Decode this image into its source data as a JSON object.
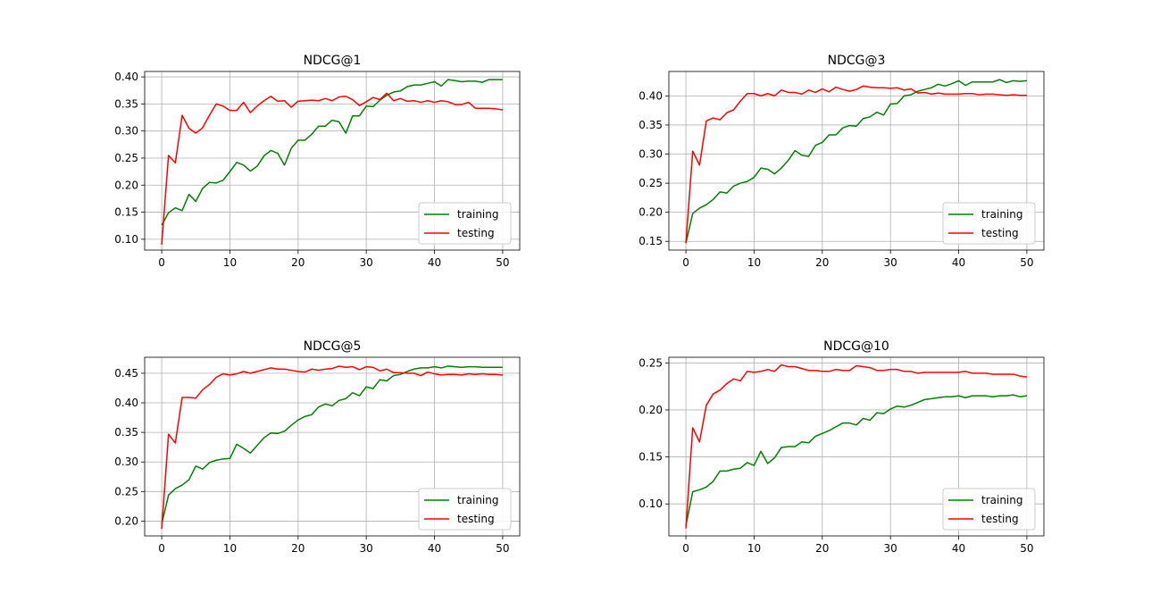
{
  "chart_data": [
    {
      "type": "line",
      "title": "NDCG@1",
      "xlim": [
        -2.5,
        52.5
      ],
      "ylim": [
        0.08,
        0.41
      ],
      "xticks": [
        0,
        10,
        20,
        30,
        40,
        50
      ],
      "yticks": [
        0.1,
        0.15,
        0.2,
        0.25,
        0.3,
        0.35,
        0.4
      ],
      "ytick_labels": [
        "0.10",
        "0.15",
        "0.20",
        "0.25",
        "0.30",
        "0.35",
        "0.40"
      ],
      "grid": true,
      "legend": "lower-right",
      "series": [
        {
          "name": "training",
          "color": "#008000",
          "values": [
            0.126,
            0.149,
            0.158,
            0.153,
            0.183,
            0.17,
            0.194,
            0.205,
            0.204,
            0.209,
            0.225,
            0.242,
            0.237,
            0.226,
            0.235,
            0.254,
            0.264,
            0.259,
            0.237,
            0.268,
            0.283,
            0.283,
            0.294,
            0.309,
            0.309,
            0.32,
            0.317,
            0.296,
            0.328,
            0.328,
            0.346,
            0.345,
            0.357,
            0.366,
            0.372,
            0.374,
            0.382,
            0.385,
            0.385,
            0.388,
            0.391,
            0.383,
            0.395,
            0.393,
            0.391,
            0.392,
            0.392,
            0.39,
            0.395,
            0.395,
            0.395
          ]
        },
        {
          "name": "testing",
          "color": "#ff0000",
          "values": [
            0.09,
            0.255,
            0.241,
            0.329,
            0.305,
            0.296,
            0.306,
            0.329,
            0.35,
            0.346,
            0.338,
            0.338,
            0.353,
            0.334,
            0.346,
            0.356,
            0.364,
            0.355,
            0.356,
            0.344,
            0.355,
            0.356,
            0.357,
            0.356,
            0.36,
            0.356,
            0.363,
            0.364,
            0.358,
            0.347,
            0.354,
            0.362,
            0.358,
            0.37,
            0.356,
            0.36,
            0.355,
            0.356,
            0.353,
            0.356,
            0.353,
            0.356,
            0.354,
            0.349,
            0.349,
            0.353,
            0.342,
            0.342,
            0.342,
            0.341,
            0.339
          ]
        }
      ]
    },
    {
      "type": "line",
      "title": "NDCG@3",
      "xlim": [
        -2.5,
        52.5
      ],
      "ylim": [
        0.135,
        0.442
      ],
      "xticks": [
        0,
        10,
        20,
        30,
        40,
        50
      ],
      "yticks": [
        0.15,
        0.2,
        0.25,
        0.3,
        0.35,
        0.4
      ],
      "ytick_labels": [
        "0.15",
        "0.20",
        "0.25",
        "0.30",
        "0.35",
        "0.40"
      ],
      "grid": true,
      "legend": "lower-right",
      "series": [
        {
          "name": "training",
          "color": "#008000",
          "values": [
            0.147,
            0.198,
            0.207,
            0.213,
            0.222,
            0.235,
            0.233,
            0.245,
            0.25,
            0.253,
            0.26,
            0.276,
            0.274,
            0.266,
            0.276,
            0.289,
            0.306,
            0.298,
            0.296,
            0.315,
            0.32,
            0.333,
            0.333,
            0.345,
            0.349,
            0.348,
            0.361,
            0.364,
            0.372,
            0.367,
            0.386,
            0.387,
            0.4,
            0.402,
            0.408,
            0.411,
            0.414,
            0.42,
            0.417,
            0.421,
            0.426,
            0.418,
            0.424,
            0.424,
            0.424,
            0.424,
            0.428,
            0.423,
            0.426,
            0.425,
            0.426
          ]
        },
        {
          "name": "testing",
          "color": "#ff0000",
          "values": [
            0.147,
            0.305,
            0.281,
            0.357,
            0.362,
            0.359,
            0.371,
            0.376,
            0.391,
            0.404,
            0.404,
            0.4,
            0.404,
            0.4,
            0.41,
            0.406,
            0.406,
            0.403,
            0.41,
            0.406,
            0.412,
            0.407,
            0.415,
            0.411,
            0.408,
            0.411,
            0.417,
            0.415,
            0.414,
            0.414,
            0.413,
            0.414,
            0.41,
            0.412,
            0.405,
            0.406,
            0.403,
            0.405,
            0.403,
            0.403,
            0.403,
            0.404,
            0.404,
            0.402,
            0.403,
            0.403,
            0.402,
            0.401,
            0.402,
            0.401,
            0.401
          ]
        }
      ]
    },
    {
      "type": "line",
      "title": "NDCG@5",
      "xlim": [
        -2.5,
        52.5
      ],
      "ylim": [
        0.175,
        0.477
      ],
      "xticks": [
        0,
        10,
        20,
        30,
        40,
        50
      ],
      "yticks": [
        0.2,
        0.25,
        0.3,
        0.35,
        0.4,
        0.45
      ],
      "ytick_labels": [
        "0.20",
        "0.25",
        "0.30",
        "0.35",
        "0.40",
        "0.45"
      ],
      "grid": true,
      "legend": "lower-right",
      "series": [
        {
          "name": "training",
          "color": "#008000",
          "values": [
            0.195,
            0.244,
            0.255,
            0.261,
            0.27,
            0.293,
            0.288,
            0.299,
            0.303,
            0.305,
            0.306,
            0.33,
            0.323,
            0.315,
            0.328,
            0.341,
            0.349,
            0.348,
            0.352,
            0.362,
            0.371,
            0.377,
            0.38,
            0.393,
            0.398,
            0.395,
            0.404,
            0.407,
            0.417,
            0.412,
            0.427,
            0.424,
            0.439,
            0.437,
            0.446,
            0.448,
            0.453,
            0.457,
            0.459,
            0.459,
            0.461,
            0.459,
            0.462,
            0.461,
            0.46,
            0.461,
            0.461,
            0.46,
            0.46,
            0.46,
            0.46
          ]
        },
        {
          "name": "testing",
          "color": "#ff0000",
          "values": [
            0.187,
            0.347,
            0.332,
            0.409,
            0.409,
            0.408,
            0.422,
            0.431,
            0.443,
            0.449,
            0.447,
            0.449,
            0.453,
            0.45,
            0.453,
            0.456,
            0.459,
            0.457,
            0.457,
            0.455,
            0.453,
            0.452,
            0.457,
            0.455,
            0.457,
            0.458,
            0.462,
            0.46,
            0.461,
            0.456,
            0.461,
            0.46,
            0.454,
            0.457,
            0.451,
            0.451,
            0.45,
            0.45,
            0.446,
            0.452,
            0.449,
            0.447,
            0.448,
            0.448,
            0.447,
            0.449,
            0.448,
            0.449,
            0.448,
            0.448,
            0.447
          ]
        }
      ]
    },
    {
      "type": "line",
      "title": "NDCG@10",
      "xlim": [
        -2.5,
        52.5
      ],
      "ylim": [
        0.066,
        0.256
      ],
      "xticks": [
        0,
        10,
        20,
        30,
        40,
        50
      ],
      "yticks": [
        0.1,
        0.15,
        0.2,
        0.25
      ],
      "ytick_labels": [
        "0.10",
        "0.15",
        "0.20",
        "0.25"
      ],
      "grid": true,
      "legend": "lower-right",
      "series": [
        {
          "name": "training",
          "color": "#008000",
          "values": [
            0.077,
            0.113,
            0.115,
            0.118,
            0.124,
            0.135,
            0.135,
            0.137,
            0.138,
            0.144,
            0.141,
            0.156,
            0.143,
            0.149,
            0.16,
            0.161,
            0.161,
            0.166,
            0.165,
            0.172,
            0.175,
            0.178,
            0.182,
            0.186,
            0.186,
            0.184,
            0.191,
            0.189,
            0.197,
            0.196,
            0.201,
            0.204,
            0.203,
            0.205,
            0.208,
            0.211,
            0.212,
            0.213,
            0.214,
            0.214,
            0.215,
            0.213,
            0.215,
            0.215,
            0.215,
            0.214,
            0.215,
            0.215,
            0.216,
            0.214,
            0.215
          ]
        },
        {
          "name": "testing",
          "color": "#ff0000",
          "values": [
            0.074,
            0.181,
            0.166,
            0.205,
            0.217,
            0.221,
            0.228,
            0.233,
            0.231,
            0.241,
            0.24,
            0.241,
            0.243,
            0.241,
            0.248,
            0.246,
            0.246,
            0.244,
            0.242,
            0.242,
            0.241,
            0.241,
            0.243,
            0.242,
            0.242,
            0.247,
            0.246,
            0.245,
            0.242,
            0.242,
            0.243,
            0.243,
            0.241,
            0.241,
            0.239,
            0.24,
            0.24,
            0.24,
            0.24,
            0.24,
            0.24,
            0.241,
            0.239,
            0.239,
            0.239,
            0.238,
            0.238,
            0.238,
            0.238,
            0.236,
            0.235
          ]
        }
      ]
    }
  ]
}
